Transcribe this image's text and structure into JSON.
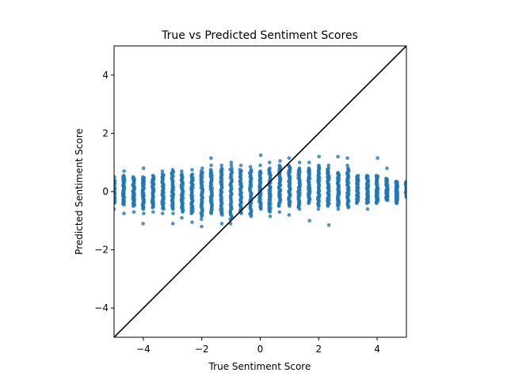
{
  "chart_data": {
    "type": "scatter",
    "title": "True vs Predicted Sentiment Scores",
    "xlabel": "True Sentiment Score",
    "ylabel": "Predicted Sentiment Score",
    "xlim": [
      -5,
      5
    ],
    "ylim": [
      -5,
      5
    ],
    "xticks": [
      -4,
      -2,
      0,
      2,
      4
    ],
    "yticks": [
      -4,
      -2,
      0,
      2,
      4
    ],
    "xtick_labels": [
      "−4",
      "−2",
      "0",
      "2",
      "4"
    ],
    "ytick_labels": [
      "−4",
      "−2",
      "0",
      "2",
      "4"
    ],
    "grid": false,
    "point_color": "#1f77b4",
    "reference_line": {
      "type": "identity",
      "color": "#000000",
      "from": [
        -5,
        -5
      ],
      "to": [
        5,
        5
      ]
    },
    "columns": [
      {
        "x": -5.0,
        "min": -0.4,
        "max": 0.4,
        "out": [
          -0.6,
          0.5
        ]
      },
      {
        "x": -4.67,
        "min": -0.45,
        "max": 0.55,
        "out": [
          0.7,
          -0.75
        ]
      },
      {
        "x": -4.33,
        "min": -0.5,
        "max": 0.5,
        "out": [
          -0.7
        ]
      },
      {
        "x": -4.0,
        "min": -0.6,
        "max": 0.5,
        "out": [
          0.8,
          -1.1,
          -0.75
        ]
      },
      {
        "x": -3.67,
        "min": -0.55,
        "max": 0.55,
        "out": [
          -0.7
        ]
      },
      {
        "x": -3.33,
        "min": -0.6,
        "max": 0.6,
        "out": [
          0.7,
          -0.75
        ]
      },
      {
        "x": -3.0,
        "min": -0.6,
        "max": 0.7,
        "out": [
          0.75,
          -0.75,
          -1.1
        ]
      },
      {
        "x": -2.67,
        "min": -0.7,
        "max": 0.6,
        "out": [
          0.7,
          -0.9
        ]
      },
      {
        "x": -2.33,
        "min": -0.75,
        "max": 0.6,
        "out": [
          0.75,
          -1.05
        ]
      },
      {
        "x": -2.0,
        "min": -0.85,
        "max": 0.7,
        "out": [
          0.8,
          -1.2,
          -0.95
        ]
      },
      {
        "x": -1.67,
        "min": -0.75,
        "max": 0.75,
        "out": [
          1.15,
          0.9
        ]
      },
      {
        "x": -1.33,
        "min": -0.8,
        "max": 0.8,
        "out": [
          -1.1,
          0.9
        ]
      },
      {
        "x": -1.0,
        "min": -0.95,
        "max": 0.8,
        "out": [
          -1.1,
          1.0,
          0.9
        ]
      },
      {
        "x": -0.67,
        "min": -0.75,
        "max": 0.75,
        "out": [
          0.9
        ]
      },
      {
        "x": -0.33,
        "min": -0.8,
        "max": 0.75,
        "out": [
          0.85,
          -0.85
        ]
      },
      {
        "x": 0.0,
        "min": -0.6,
        "max": 0.7,
        "out": [
          1.25,
          0.9
        ]
      },
      {
        "x": 0.33,
        "min": -0.7,
        "max": 0.8,
        "out": [
          1.0,
          -0.85
        ]
      },
      {
        "x": 0.67,
        "min": -0.5,
        "max": 0.9,
        "out": [
          1.05,
          -0.7
        ]
      },
      {
        "x": 1.0,
        "min": -0.5,
        "max": 0.9,
        "out": [
          1.15,
          -0.8
        ]
      },
      {
        "x": 1.33,
        "min": -0.55,
        "max": 0.8,
        "out": [
          1.0,
          -0.6
        ]
      },
      {
        "x": 1.67,
        "min": -0.4,
        "max": 0.8,
        "out": [
          -1.0,
          1.0
        ]
      },
      {
        "x": 2.0,
        "min": -0.5,
        "max": 0.9,
        "out": [
          1.2,
          -0.6
        ]
      },
      {
        "x": 2.33,
        "min": -0.5,
        "max": 0.8,
        "out": [
          -1.15,
          0.9
        ]
      },
      {
        "x": 2.67,
        "min": -0.5,
        "max": 0.65,
        "out": [
          1.2,
          -0.6
        ]
      },
      {
        "x": 3.0,
        "min": -0.55,
        "max": 0.8,
        "out": [
          1.15,
          0.9
        ]
      },
      {
        "x": 3.33,
        "min": -0.4,
        "max": 0.55,
        "out": []
      },
      {
        "x": 3.67,
        "min": -0.4,
        "max": 0.55,
        "out": [
          -0.6
        ]
      },
      {
        "x": 4.0,
        "min": -0.4,
        "max": 0.55,
        "out": [
          1.15
        ]
      },
      {
        "x": 4.33,
        "min": -0.3,
        "max": 0.45,
        "out": [
          0.8
        ]
      },
      {
        "x": 4.67,
        "min": -0.4,
        "max": 0.35,
        "out": []
      },
      {
        "x": 5.0,
        "min": -0.2,
        "max": 0.35,
        "out": []
      }
    ]
  }
}
